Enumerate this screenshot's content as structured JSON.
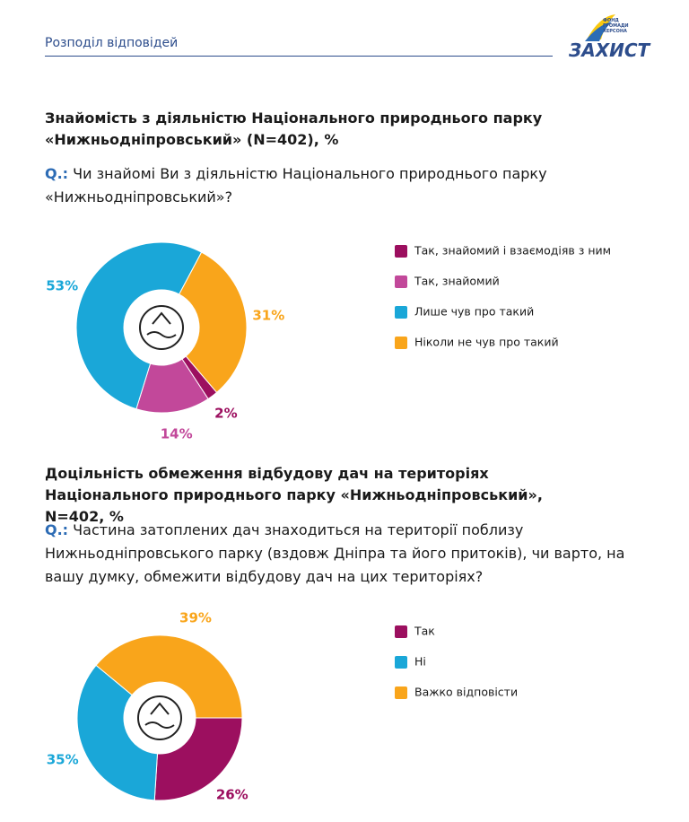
{
  "header": {
    "title": "Розподіл відповідей",
    "logo_small": "ФОНД ГРОМАДИ ХЕРСОНА",
    "logo_name": "ЗАХИСТ"
  },
  "chart_data": [
    {
      "type": "pie",
      "title": "Знайомість з діяльністю Національного природнього парку «Нижньодніпровський» (N=402), %",
      "question_label": "Q.:",
      "question": "Чи знайомі Ви з діяльністю Національного природнього парку «Нижньодніпровський»?",
      "categories": [
        "Так, знайомий і взаємодіяв з ним",
        "Так, знайомий",
        "Лише чув про такий",
        "Ніколи не чув про такий"
      ],
      "values": [
        2,
        14,
        53,
        31
      ],
      "value_labels": [
        "2%",
        "14%",
        "53%",
        "31%"
      ],
      "colors": [
        "#9c0f5f",
        "#c2489a",
        "#1aa7d8",
        "#f9a51b"
      ]
    },
    {
      "type": "pie",
      "title": "Доцільність обмеження відбудову дач на територіях Національного природнього парку «Нижньодніпровський», N=402, %",
      "question_label": "Q.:",
      "question": "Частина затоплених дач знаходиться на території поблизу Нижньодніпровського парку (вздовж Дніпра та його притоків), чи варто, на вашу думку, обмежити відбудову дач на цих територіях?",
      "categories": [
        "Так",
        "Ні",
        "Важко відповісти"
      ],
      "values": [
        26,
        35,
        39
      ],
      "value_labels": [
        "26%",
        "35%",
        "39%"
      ],
      "colors": [
        "#9c0f5f",
        "#1aa7d8",
        "#f9a51b"
      ]
    }
  ]
}
